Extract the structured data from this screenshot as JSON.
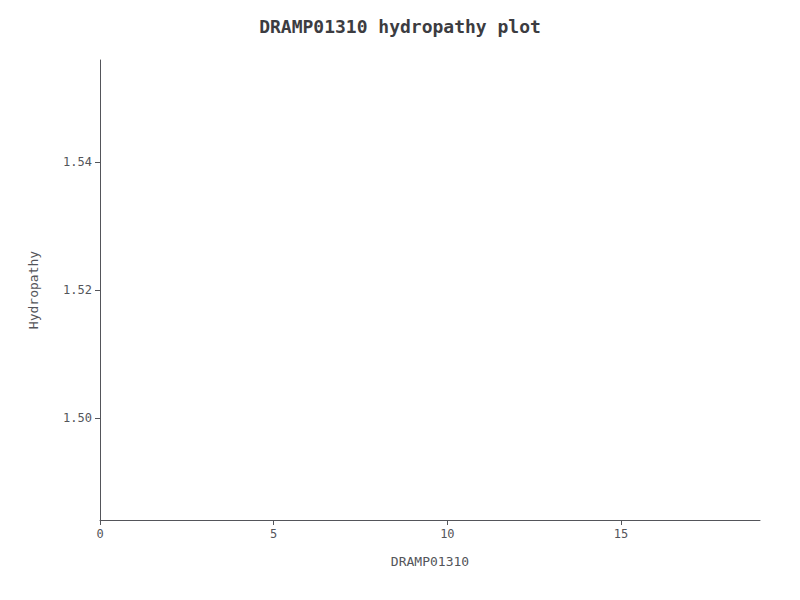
{
  "chart_data": {
    "type": "line",
    "title": "DRAMP01310 hydropathy plot",
    "xlabel": "DRAMP01310",
    "ylabel": "Hydropathy",
    "xlim": [
      0,
      19
    ],
    "ylim": [
      1.484,
      1.556
    ],
    "xticks": [
      0,
      5,
      10,
      15
    ],
    "yticks": [
      {
        "value": 1.5,
        "label": "1.50"
      },
      {
        "value": 1.52,
        "label": "1.52"
      },
      {
        "value": 1.54,
        "label": "1.54"
      }
    ],
    "grid": false,
    "series": []
  }
}
